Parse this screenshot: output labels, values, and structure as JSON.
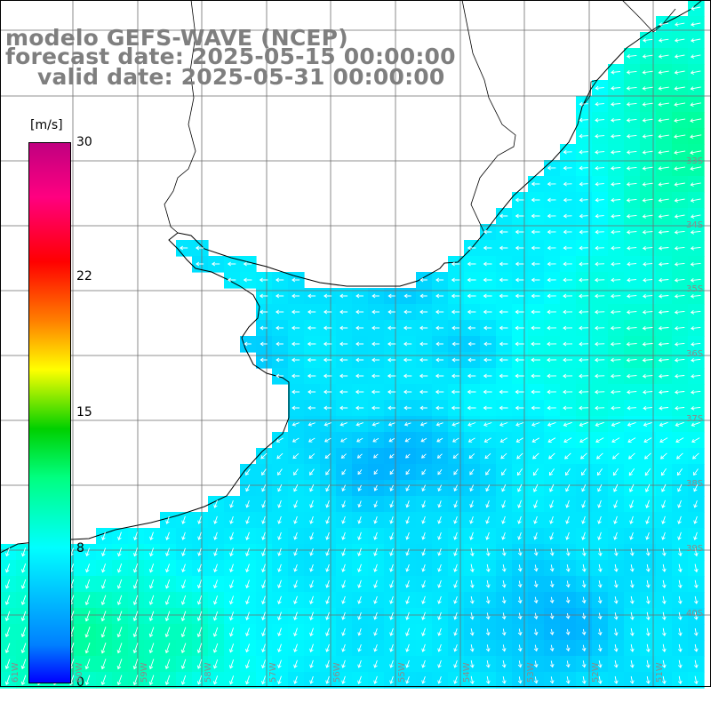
{
  "title": {
    "model": "modelo GEFS-WAVE (NCEP)",
    "forecast": "forecast date: 2025-05-15 00:00:00",
    "valid": "valid date: 2025-05-31 00:00:00"
  },
  "colorbar": {
    "unit": "[m/s]",
    "ticks": [
      {
        "label": "30",
        "value": 30
      },
      {
        "label": "22",
        "value": 22
      },
      {
        "label": "15",
        "value": 15
      },
      {
        "label": "8",
        "value": 8
      },
      {
        "label": "0",
        "value": 0
      }
    ],
    "min": 0,
    "max": 30,
    "colors": [
      "#0000ff",
      "#0080ff",
      "#00ffff",
      "#00ff80",
      "#00d000",
      "#ffff00",
      "#ff8000",
      "#ff0000",
      "#ff0080",
      "#c00080"
    ]
  },
  "map": {
    "region": "Rio de la Plata and Uruguay coast",
    "lat_labels": [
      "33S",
      "34S",
      "35S",
      "36S",
      "37S",
      "38S",
      "39S",
      "40S"
    ],
    "lon_labels": [
      "61W",
      "60W",
      "59W",
      "58W",
      "57W",
      "56W",
      "55W",
      "54W",
      "53W",
      "52W",
      "51W"
    ],
    "wind_field": "10 m wind speed (shaded) and direction (arrows)"
  }
}
